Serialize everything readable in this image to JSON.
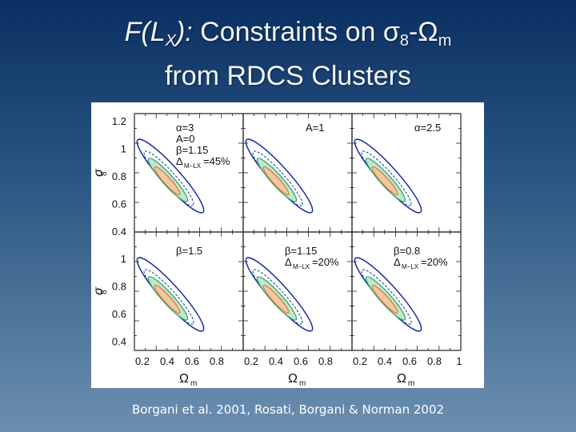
{
  "slide": {
    "title_italic": "F(L",
    "title_italic_sub": "X",
    "title_italic_end": "):",
    "title_rest": " Constraints on σ",
    "title_sigma_sub": "8",
    "title_dash": "-Ω",
    "title_omega_sub": "m",
    "title_line2": "from RDCS Clusters",
    "caption": "Borgani et al. 2001, Rosati, Borgani & Norman 2002"
  },
  "figure": {
    "y_axis_label": "σ",
    "y_axis_sub": "8",
    "x_axis_label": "Ω",
    "x_axis_sub": "m",
    "y_ticks": [
      "1.2",
      "1",
      "0.8",
      "0.6",
      "0.4"
    ],
    "y_ticks_bottom": [
      "1",
      "0.8",
      "0.6",
      "0.4"
    ],
    "x_ticks": [
      "0.2",
      "0.4",
      "0.6",
      "0.8"
    ],
    "x_ticks_last": [
      "0.2",
      "0.4",
      "0.6",
      "0.8",
      "1"
    ],
    "panels": [
      {
        "lines": [
          "α=3",
          "A=0",
          "β=1.15",
          "Δ"
        ],
        "delta_sub": "M−L",
        "delta_sub2": "X",
        "delta_val": "=45%"
      },
      {
        "lines": [
          "A=1"
        ]
      },
      {
        "lines": [
          "α=2.5"
        ]
      },
      {
        "lines": [
          "β=1.5"
        ]
      },
      {
        "lines": [
          "β=1.15",
          "Δ"
        ],
        "delta_sub": "M−L",
        "delta_sub2": "X",
        "delta_val": "=20%"
      },
      {
        "lines": [
          "β=0.8",
          "Δ"
        ],
        "delta_sub": "M−L",
        "delta_sub2": "X",
        "delta_val": "=20%"
      }
    ],
    "colors": {
      "blue": "#1c2fa8",
      "green": "#2f9f5a",
      "dash": "#1a4fa0",
      "orange": "#d07a3a"
    }
  }
}
